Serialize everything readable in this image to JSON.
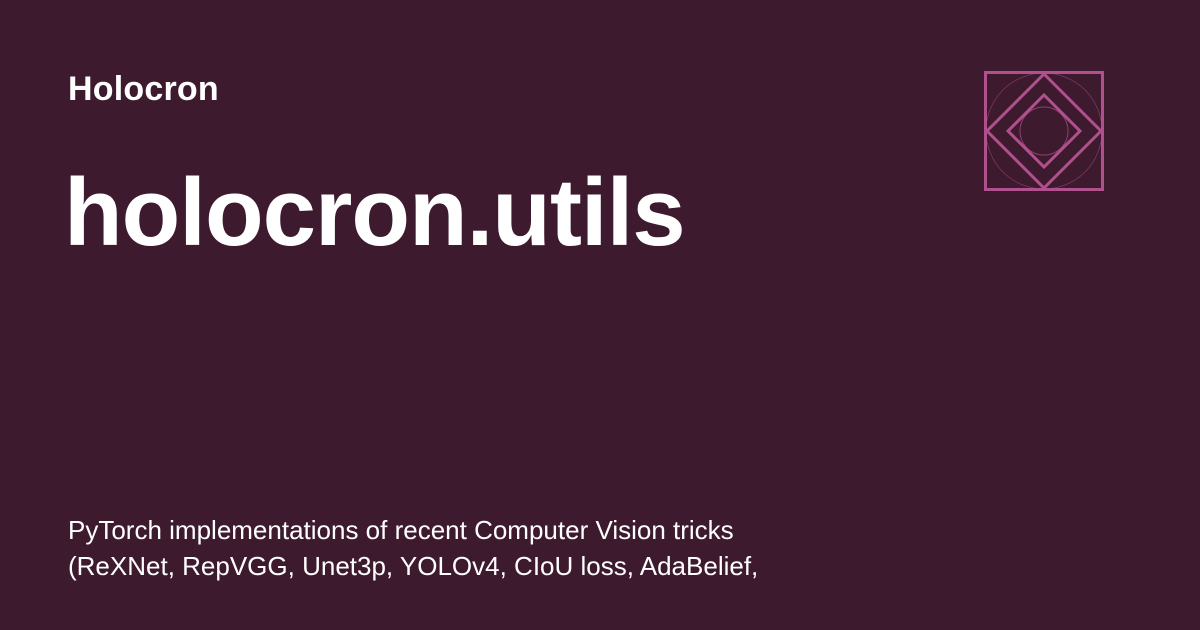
{
  "site": {
    "name": "Holocron"
  },
  "page": {
    "title": "holocron.utils",
    "description_lines": [
      "PyTorch implementations of recent Computer Vision tricks",
      "(ReXNet, RepVGG, Unet3p, YOLOv4, CIoU loss, AdaBelief,"
    ]
  },
  "colors": {
    "background": "#3d1a2e",
    "text": "#ffffff",
    "logo_accent": "#b0508c"
  },
  "logo": {
    "icon": "nested-diamond-logo-icon"
  }
}
